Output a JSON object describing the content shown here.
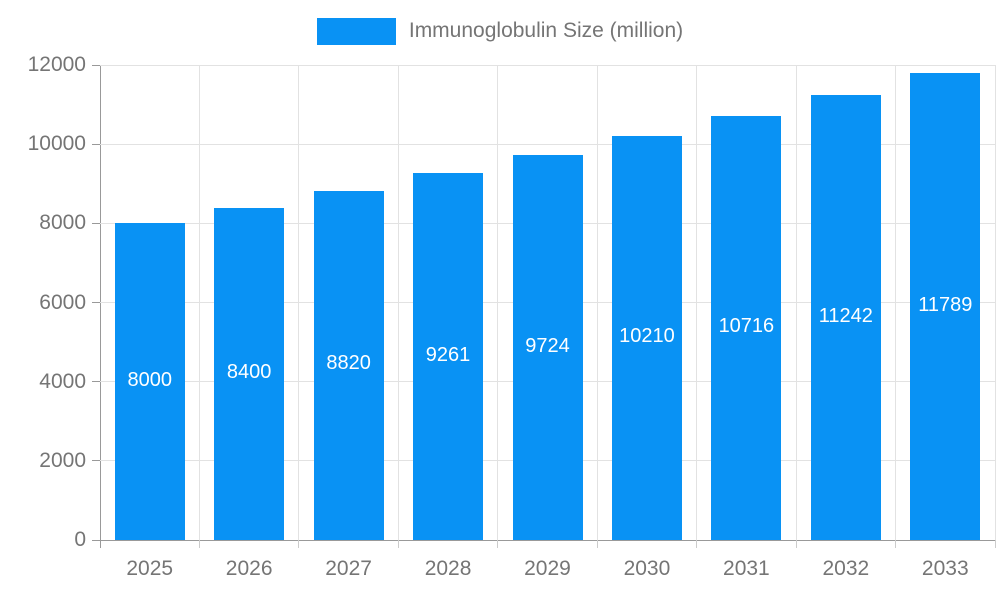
{
  "chart_data": {
    "type": "bar",
    "title": "",
    "legend": "Immunoglobulin Size (million)",
    "categories": [
      "2025",
      "2026",
      "2027",
      "2028",
      "2029",
      "2030",
      "2031",
      "2032",
      "2033"
    ],
    "values": [
      8000,
      8400,
      8820,
      9261,
      9724,
      10210,
      10716,
      11242,
      11789
    ],
    "value_labels": [
      "8000",
      "8400",
      "8820",
      "9261",
      "9724",
      "10210",
      "10716",
      "11242",
      "11789"
    ],
    "yticks": [
      0,
      2000,
      4000,
      6000,
      8000,
      10000,
      12000
    ],
    "ylim": [
      0,
      12000
    ],
    "xlabel": "",
    "ylabel": "",
    "grid": true,
    "legend_position": "top-center",
    "colors": {
      "bar": "#0992f4",
      "axis": "#999999",
      "gridline": "#e2e2e2",
      "tick": "#cccccc",
      "axis_text": "#757575",
      "value_text": "#ffffff",
      "background": "#ffffff"
    }
  }
}
